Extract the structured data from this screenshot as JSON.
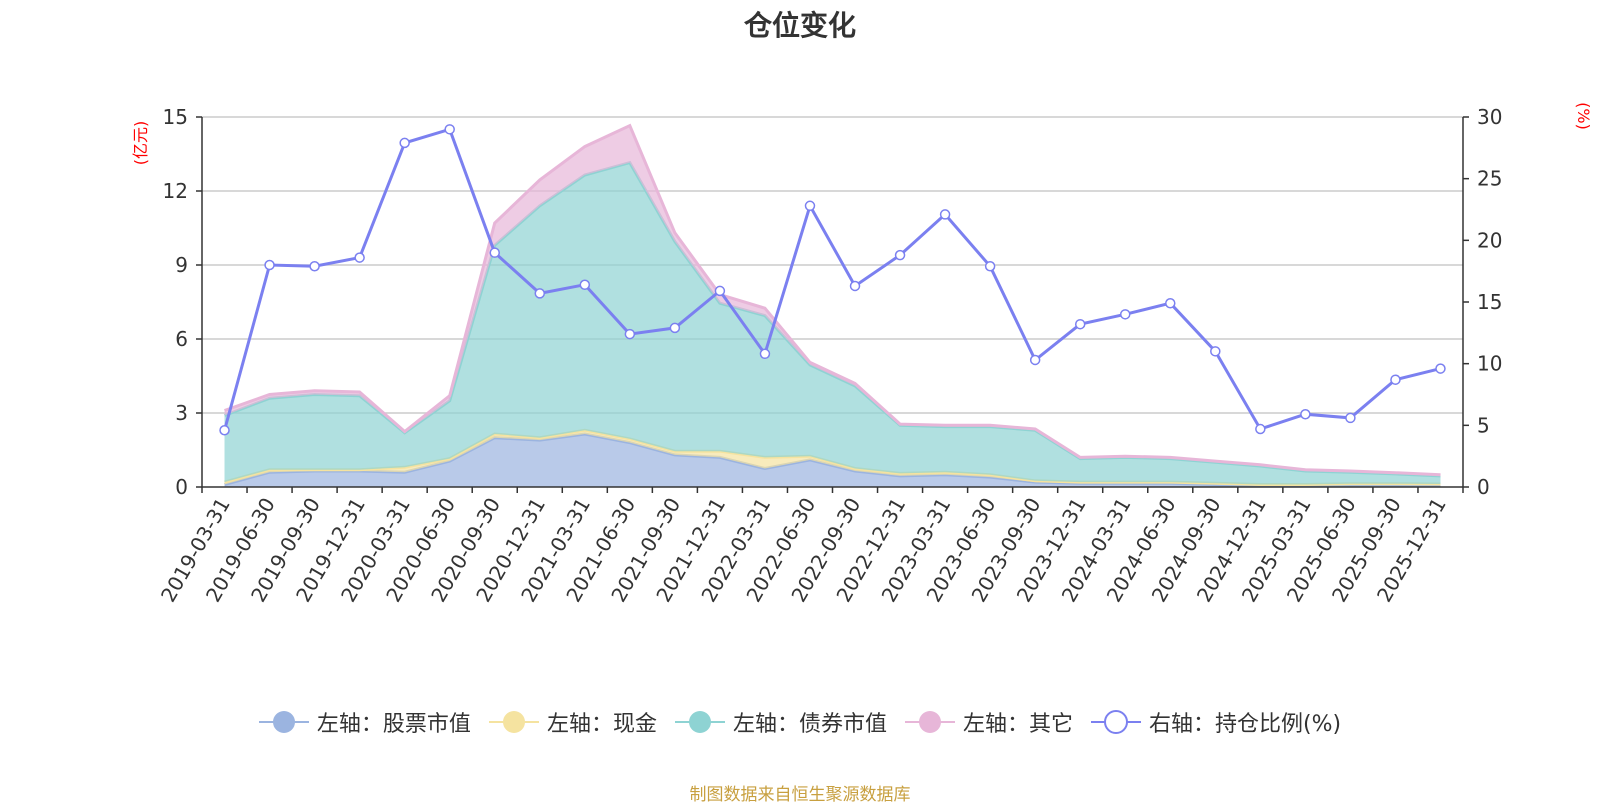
{
  "chart_data": {
    "type": "area",
    "title": "仓位变化",
    "left_axis_unit": "(亿元)",
    "right_axis_unit": "(%)",
    "left_ylim": [
      0,
      15
    ],
    "left_yticks": [
      0,
      3,
      6,
      9,
      12,
      15
    ],
    "right_ylim": [
      0,
      30
    ],
    "right_yticks": [
      0,
      5,
      10,
      15,
      20,
      25,
      30
    ],
    "categories": [
      "2019-03-31",
      "2019-06-30",
      "2019-09-30",
      "2019-12-31",
      "2020-03-31",
      "2020-06-30",
      "2020-09-30",
      "2020-12-31",
      "2021-03-31",
      "2021-06-30",
      "2021-09-30",
      "2021-12-31",
      "2022-03-31",
      "2022-06-30",
      "2022-09-30",
      "2022-12-31",
      "2023-03-31",
      "2023-06-30",
      "2023-09-30",
      "2023-12-31",
      "2024-03-31",
      "2024-06-30",
      "2024-09-30",
      "2024-12-31",
      "2025-03-31",
      "2025-06-30",
      "2025-09-30",
      "2025-12-31"
    ],
    "series": [
      {
        "name": "左轴：股票市值",
        "axis": "left",
        "type": "area",
        "color": "#9bb4e0",
        "values": [
          0.1,
          0.6,
          0.65,
          0.65,
          0.6,
          1.05,
          2.0,
          1.9,
          2.15,
          1.8,
          1.3,
          1.2,
          0.75,
          1.1,
          0.65,
          0.45,
          0.5,
          0.4,
          0.2,
          0.15,
          0.15,
          0.15,
          0.1,
          0.05,
          0.05,
          0.08,
          0.08,
          0.07
        ]
      },
      {
        "name": "左轴：现金",
        "axis": "left",
        "type": "area",
        "color": "#f5e3a0",
        "values": [
          0.1,
          0.1,
          0.05,
          0.05,
          0.2,
          0.1,
          0.15,
          0.1,
          0.15,
          0.15,
          0.15,
          0.25,
          0.45,
          0.15,
          0.1,
          0.1,
          0.1,
          0.1,
          0.05,
          0.05,
          0.05,
          0.05,
          0.05,
          0.05,
          0.05,
          0.05,
          0.05,
          0.05
        ]
      },
      {
        "name": "左轴：债券市值",
        "axis": "left",
        "type": "area",
        "color": "#8ed3d3",
        "values": [
          2.7,
          2.9,
          3.05,
          3.0,
          1.4,
          2.35,
          7.65,
          9.4,
          10.35,
          11.2,
          8.5,
          6.0,
          5.75,
          3.7,
          3.35,
          1.95,
          1.85,
          1.95,
          2.05,
          0.95,
          1.0,
          0.95,
          0.85,
          0.75,
          0.55,
          0.47,
          0.4,
          0.33
        ]
      },
      {
        "name": "左轴：其它",
        "axis": "left",
        "type": "area",
        "color": "#e7b6d8",
        "values": [
          0.2,
          0.15,
          0.15,
          0.15,
          0.05,
          0.2,
          0.9,
          1.05,
          1.15,
          1.5,
          0.35,
          0.35,
          0.3,
          0.1,
          0.1,
          0.05,
          0.05,
          0.05,
          0.05,
          0.05,
          0.05,
          0.05,
          0.05,
          0.05,
          0.05,
          0.05,
          0.05,
          0.05
        ]
      },
      {
        "name": "右轴：持仓比例(%)",
        "axis": "right",
        "type": "line",
        "color": "#7b80f0",
        "values": [
          4.6,
          18.0,
          17.9,
          18.6,
          27.9,
          29.0,
          19.0,
          15.7,
          16.4,
          12.4,
          12.9,
          15.9,
          10.8,
          22.8,
          16.3,
          18.8,
          22.1,
          17.9,
          10.3,
          13.2,
          14.0,
          14.9,
          11.0,
          4.7,
          5.9,
          5.6,
          8.7,
          9.6
        ]
      }
    ]
  },
  "source": "制图数据来自恒生聚源数据库"
}
